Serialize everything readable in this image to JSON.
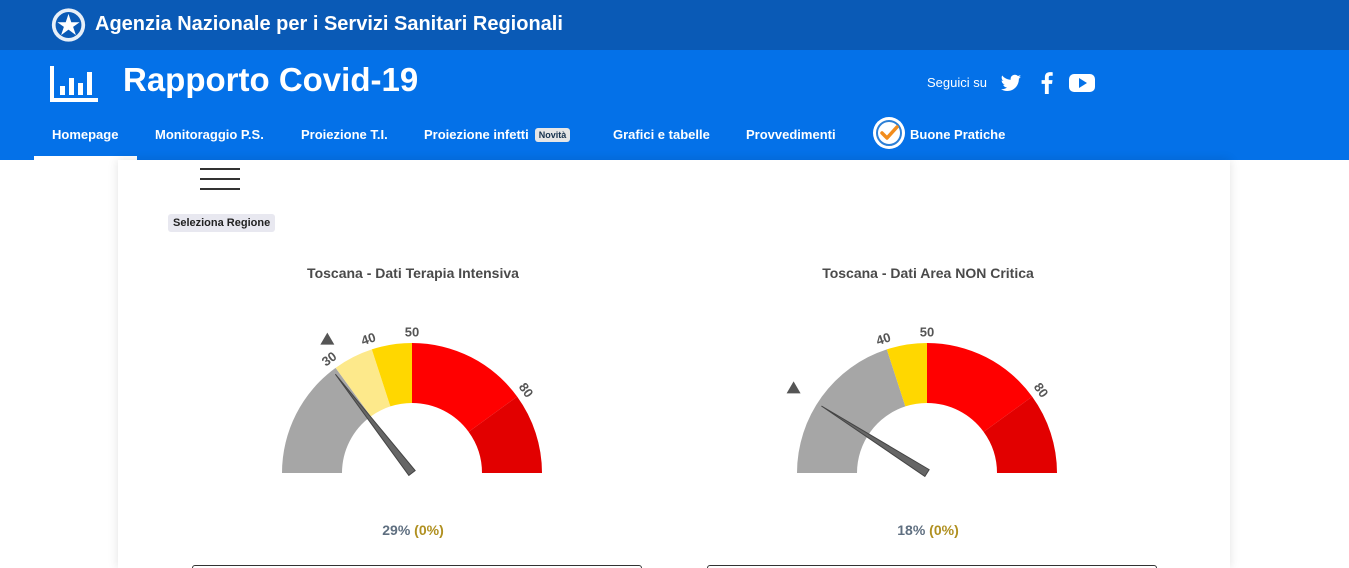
{
  "header": {
    "agency_title": "Agenzia Nazionale per i Servizi Sanitari Regionali",
    "site_title": "Rapporto Covid-19",
    "social_label": "Seguici su",
    "social_icons": [
      "twitter-icon",
      "facebook-icon",
      "youtube-icon"
    ]
  },
  "nav": {
    "items": [
      {
        "label": "Homepage"
      },
      {
        "label": "Monitoraggio P.S."
      },
      {
        "label": "Proiezione T.I."
      },
      {
        "label": "Proiezione infetti",
        "badge": "Novità"
      },
      {
        "label": "Grafici e tabelle"
      },
      {
        "label": "Provvedimenti"
      },
      {
        "label": "Buone Pratiche"
      }
    ],
    "active": "Homepage"
  },
  "main": {
    "select_region_label": "Seleziona Regione"
  },
  "chart_data": [
    {
      "type": "gauge",
      "title": "Toscana - Dati Terapia Intensiva",
      "min": 0,
      "max": 100,
      "value": 29,
      "value_text": "29%",
      "delta_text": "(0%)",
      "tick_labels": [
        "30",
        "40",
        "50",
        "80"
      ],
      "bands": [
        {
          "from": 0,
          "to": 30,
          "color": "#a6a6a6"
        },
        {
          "from": 30,
          "to": 40,
          "color": "#fde98b"
        },
        {
          "from": 40,
          "to": 50,
          "color": "#ffd700"
        },
        {
          "from": 50,
          "to": 80,
          "color": "#ff0000"
        },
        {
          "from": 80,
          "to": 100,
          "color": "#e20000"
        }
      ],
      "marker": 32
    },
    {
      "type": "gauge",
      "title": "Toscana - Dati Area NON Critica",
      "min": 0,
      "max": 100,
      "value": 18,
      "value_text": "18%",
      "delta_text": "(0%)",
      "tick_labels": [
        "40",
        "50",
        "80"
      ],
      "bands": [
        {
          "from": 0,
          "to": 40,
          "color": "#a6a6a6"
        },
        {
          "from": 40,
          "to": 50,
          "color": "#ffd700"
        },
        {
          "from": 50,
          "to": 80,
          "color": "#ff0000"
        },
        {
          "from": 80,
          "to": 100,
          "color": "#e20000"
        }
      ],
      "marker": 18
    }
  ]
}
